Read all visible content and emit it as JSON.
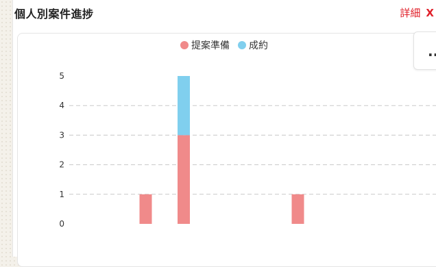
{
  "header": {
    "title": "個人別案件進捗",
    "detail_label": "詳細",
    "close_glyph": "X"
  },
  "menu": {
    "label": "..."
  },
  "chart_data": {
    "type": "bar",
    "stacked": true,
    "categories": [
      "",
      "",
      "",
      "",
      "",
      "",
      "",
      "",
      ""
    ],
    "series": [
      {
        "name": "提案準備",
        "color": "#f08a8a",
        "values": [
          0,
          1,
          3,
          0,
          0,
          1,
          0,
          0,
          0
        ]
      },
      {
        "name": "成約",
        "color": "#80cfee",
        "values": [
          0,
          0,
          2,
          0,
          0,
          0,
          0,
          0,
          0
        ]
      }
    ],
    "yticks": [
      0,
      1,
      2,
      3,
      4,
      5
    ],
    "ylim": [
      0,
      5
    ],
    "grid": true,
    "legend_position": "top-center",
    "title": "",
    "xlabel": "",
    "ylabel": ""
  }
}
